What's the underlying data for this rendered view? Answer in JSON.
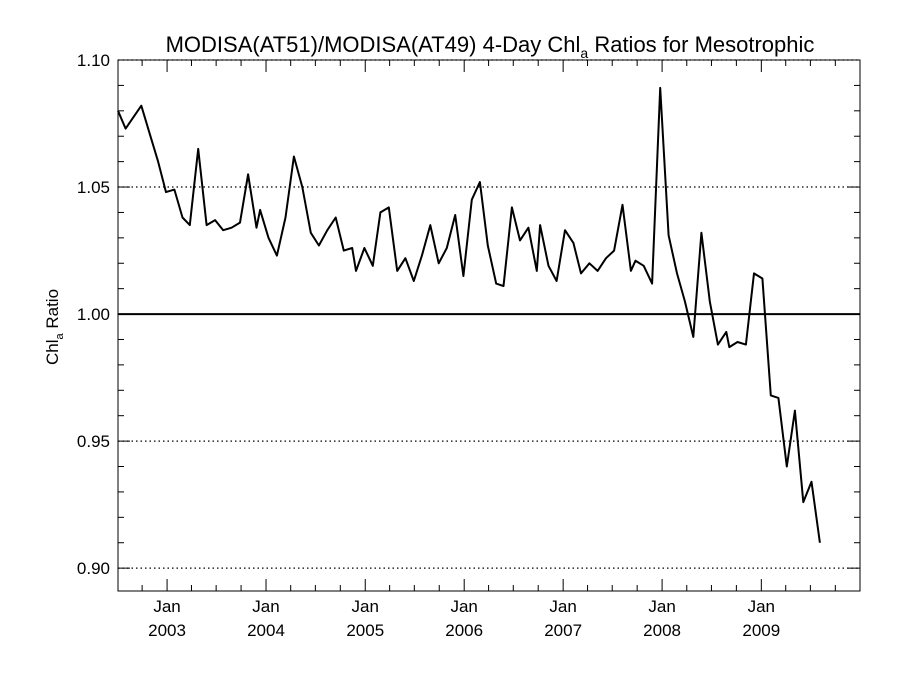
{
  "chart_data": {
    "type": "line",
    "title_main": "MODISA(AT51)/MODISA(AT49) 4-Day Chl",
    "title_sub": "a",
    "title_rest": " Ratios for Mesotrophic",
    "ylabel_main": "Chl",
    "ylabel_sub": "a",
    "ylabel_rest": " Ratio",
    "xlim": [
      "2002-07-04",
      "2009-12-31"
    ],
    "ylim": [
      0.891,
      1.1
    ],
    "y_ticks": [
      {
        "value": 0.9,
        "label": "0.90"
      },
      {
        "value": 0.95,
        "label": "0.95"
      },
      {
        "value": 1.0,
        "label": "1.00"
      },
      {
        "value": 1.05,
        "label": "1.05"
      },
      {
        "value": 1.1,
        "label": "1.10"
      }
    ],
    "x_ticks": [
      {
        "date": "2003-01-01",
        "month": "Jan",
        "year": "2003"
      },
      {
        "date": "2004-01-01",
        "month": "Jan",
        "year": "2004"
      },
      {
        "date": "2005-01-01",
        "month": "Jan",
        "year": "2005"
      },
      {
        "date": "2006-01-01",
        "month": "Jan",
        "year": "2006"
      },
      {
        "date": "2007-01-01",
        "month": "Jan",
        "year": "2007"
      },
      {
        "date": "2008-01-01",
        "month": "Jan",
        "year": "2008"
      },
      {
        "date": "2009-01-01",
        "month": "Jan",
        "year": "2009"
      }
    ],
    "reference_line": 1.0,
    "grid": "dotted horizontal at major y ticks",
    "series": [
      {
        "color": "#000000",
        "points": [
          [
            "2002-07-04",
            1.08
          ],
          [
            "2002-08-01",
            1.073
          ],
          [
            "2002-09-28",
            1.082
          ],
          [
            "2002-10-29",
            1.071
          ],
          [
            "2002-11-29",
            1.06
          ],
          [
            "2002-12-28",
            1.048
          ],
          [
            "2003-01-28",
            1.049
          ],
          [
            "2003-02-27",
            1.038
          ],
          [
            "2003-03-26",
            1.035
          ],
          [
            "2003-04-26",
            1.065
          ],
          [
            "2003-05-27",
            1.035
          ],
          [
            "2003-06-27",
            1.037
          ],
          [
            "2003-07-27",
            1.033
          ],
          [
            "2003-08-27",
            1.034
          ],
          [
            "2003-09-27",
            1.036
          ],
          [
            "2003-10-27",
            1.055
          ],
          [
            "2003-11-27",
            1.034
          ],
          [
            "2003-12-10",
            1.041
          ],
          [
            "2004-01-10",
            1.03
          ],
          [
            "2004-02-10",
            1.023
          ],
          [
            "2004-03-13",
            1.038
          ],
          [
            "2004-04-13",
            1.062
          ],
          [
            "2004-05-14",
            1.05
          ],
          [
            "2004-06-14",
            1.032
          ],
          [
            "2004-07-14",
            1.027
          ],
          [
            "2004-08-14",
            1.033
          ],
          [
            "2004-09-14",
            1.038
          ],
          [
            "2004-10-14",
            1.025
          ],
          [
            "2004-11-14",
            1.026
          ],
          [
            "2004-11-28",
            1.017
          ],
          [
            "2004-12-29",
            1.026
          ],
          [
            "2005-01-29",
            1.019
          ],
          [
            "2005-02-26",
            1.04
          ],
          [
            "2005-03-29",
            1.042
          ],
          [
            "2005-04-29",
            1.017
          ],
          [
            "2005-05-29",
            1.022
          ],
          [
            "2005-06-29",
            1.013
          ],
          [
            "2005-07-29",
            1.023
          ],
          [
            "2005-08-29",
            1.035
          ],
          [
            "2005-09-29",
            1.02
          ],
          [
            "2005-10-29",
            1.026
          ],
          [
            "2005-11-29",
            1.039
          ],
          [
            "2005-12-29",
            1.015
          ],
          [
            "2006-01-29",
            1.045
          ],
          [
            "2006-02-28",
            1.052
          ],
          [
            "2006-03-29",
            1.027
          ],
          [
            "2006-04-29",
            1.012
          ],
          [
            "2006-05-26",
            1.011
          ],
          [
            "2006-06-26",
            1.042
          ],
          [
            "2006-07-26",
            1.029
          ],
          [
            "2006-08-26",
            1.034
          ],
          [
            "2006-09-26",
            1.017
          ],
          [
            "2006-10-08",
            1.035
          ],
          [
            "2006-11-08",
            1.019
          ],
          [
            "2006-12-08",
            1.013
          ],
          [
            "2007-01-08",
            1.033
          ],
          [
            "2007-02-08",
            1.028
          ],
          [
            "2007-03-08",
            1.016
          ],
          [
            "2007-04-08",
            1.02
          ],
          [
            "2007-05-08",
            1.017
          ],
          [
            "2007-06-08",
            1.022
          ],
          [
            "2007-07-08",
            1.025
          ],
          [
            "2007-08-08",
            1.043
          ],
          [
            "2007-09-08",
            1.017
          ],
          [
            "2007-09-25",
            1.021
          ],
          [
            "2007-10-25",
            1.019
          ],
          [
            "2007-11-25",
            1.012
          ],
          [
            "2007-12-25",
            1.089
          ],
          [
            "2008-01-25",
            1.031
          ],
          [
            "2008-02-25",
            1.016
          ],
          [
            "2008-03-25",
            1.005
          ],
          [
            "2008-04-25",
            0.991
          ],
          [
            "2008-05-25",
            1.032
          ],
          [
            "2008-06-25",
            1.005
          ],
          [
            "2008-07-25",
            0.988
          ],
          [
            "2008-08-25",
            0.993
          ],
          [
            "2008-09-05",
            0.987
          ],
          [
            "2008-10-05",
            0.989
          ],
          [
            "2008-11-05",
            0.988
          ],
          [
            "2008-12-05",
            1.016
          ],
          [
            "2009-01-05",
            1.014
          ],
          [
            "2009-02-05",
            0.968
          ],
          [
            "2009-03-05",
            0.967
          ],
          [
            "2009-04-05",
            0.94
          ],
          [
            "2009-05-05",
            0.962
          ],
          [
            "2009-06-05",
            0.926
          ],
          [
            "2009-07-05",
            0.934
          ],
          [
            "2009-08-05",
            0.91
          ]
        ]
      }
    ]
  }
}
